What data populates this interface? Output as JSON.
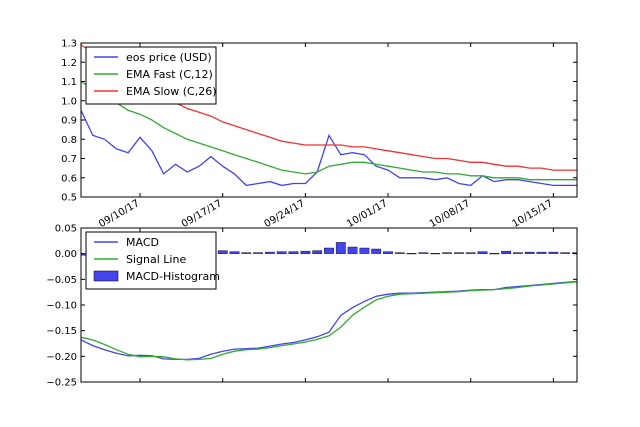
{
  "chart_data": [
    {
      "type": "line",
      "x": [
        "2017-09-05",
        "2017-09-06",
        "2017-09-07",
        "2017-09-08",
        "2017-09-09",
        "2017-09-10",
        "2017-09-11",
        "2017-09-12",
        "2017-09-13",
        "2017-09-14",
        "2017-09-15",
        "2017-09-16",
        "2017-09-17",
        "2017-09-18",
        "2017-09-19",
        "2017-09-20",
        "2017-09-21",
        "2017-09-22",
        "2017-09-23",
        "2017-09-24",
        "2017-09-25",
        "2017-09-26",
        "2017-09-27",
        "2017-09-28",
        "2017-09-29",
        "2017-09-30",
        "2017-10-01",
        "2017-10-02",
        "2017-10-03",
        "2017-10-04",
        "2017-10-05",
        "2017-10-06",
        "2017-10-07",
        "2017-10-08",
        "2017-10-09",
        "2017-10-10",
        "2017-10-11",
        "2017-10-12",
        "2017-10-13",
        "2017-10-14",
        "2017-10-15",
        "2017-10-16",
        "2017-10-17"
      ],
      "x_ticks": [
        "09/10/17",
        "09/17/17",
        "09/24/17",
        "10/01/17",
        "10/08/17",
        "10/15/17"
      ],
      "x_tick_dates": [
        "2017-09-10",
        "2017-09-17",
        "2017-09-24",
        "2017-10-01",
        "2017-10-08",
        "2017-10-15"
      ],
      "ylim": [
        0.5,
        1.3
      ],
      "y_ticks": [
        0.5,
        0.6,
        0.7,
        0.8,
        0.9,
        1.0,
        1.1,
        1.2,
        1.3
      ],
      "y_tick_labels": [
        "0.5",
        "0.6",
        "0.7",
        "0.8",
        "0.9",
        "1.0",
        "1.1",
        "1.2",
        "1.3"
      ],
      "legend_position": "top-left",
      "series": [
        {
          "name": "eos price (USD)",
          "color": "#4444ee",
          "values": [
            0.95,
            0.82,
            0.8,
            0.75,
            0.73,
            0.81,
            0.74,
            0.62,
            0.67,
            0.63,
            0.66,
            0.71,
            0.66,
            0.62,
            0.56,
            0.57,
            0.58,
            0.56,
            0.57,
            0.57,
            0.63,
            0.82,
            0.72,
            0.73,
            0.72,
            0.66,
            0.64,
            0.6,
            0.6,
            0.6,
            0.59,
            0.6,
            0.57,
            0.56,
            0.61,
            0.58,
            0.59,
            0.59,
            0.58,
            0.57,
            0.56,
            0.56,
            0.56
          ]
        },
        {
          "name": "EMA Fast (C,12)",
          "color": "#33aa33",
          "values": [
            1.1,
            1.06,
            1.03,
            0.99,
            0.95,
            0.93,
            0.9,
            0.86,
            0.83,
            0.8,
            0.78,
            0.76,
            0.74,
            0.72,
            0.7,
            0.68,
            0.66,
            0.64,
            0.63,
            0.62,
            0.63,
            0.66,
            0.67,
            0.68,
            0.68,
            0.67,
            0.66,
            0.65,
            0.64,
            0.63,
            0.63,
            0.62,
            0.62,
            0.61,
            0.61,
            0.6,
            0.6,
            0.6,
            0.59,
            0.59,
            0.59,
            0.59,
            0.59
          ]
        },
        {
          "name": "EMA Slow (C,26)",
          "color": "#ee3333",
          "values": [
            1.29,
            1.25,
            1.21,
            1.17,
            1.13,
            1.1,
            1.06,
            1.02,
            0.99,
            0.96,
            0.94,
            0.92,
            0.89,
            0.87,
            0.85,
            0.83,
            0.81,
            0.79,
            0.78,
            0.77,
            0.77,
            0.77,
            0.77,
            0.76,
            0.76,
            0.75,
            0.74,
            0.73,
            0.72,
            0.71,
            0.7,
            0.7,
            0.69,
            0.68,
            0.68,
            0.67,
            0.66,
            0.66,
            0.65,
            0.65,
            0.64,
            0.64,
            0.64
          ]
        }
      ]
    },
    {
      "type": "line",
      "x": [
        "2017-09-05",
        "2017-09-06",
        "2017-09-07",
        "2017-09-08",
        "2017-09-09",
        "2017-09-10",
        "2017-09-11",
        "2017-09-12",
        "2017-09-13",
        "2017-09-14",
        "2017-09-15",
        "2017-09-16",
        "2017-09-17",
        "2017-09-18",
        "2017-09-19",
        "2017-09-20",
        "2017-09-21",
        "2017-09-22",
        "2017-09-23",
        "2017-09-24",
        "2017-09-25",
        "2017-09-26",
        "2017-09-27",
        "2017-09-28",
        "2017-09-29",
        "2017-09-30",
        "2017-10-01",
        "2017-10-02",
        "2017-10-03",
        "2017-10-04",
        "2017-10-05",
        "2017-10-06",
        "2017-10-07",
        "2017-10-08",
        "2017-10-09",
        "2017-10-10",
        "2017-10-11",
        "2017-10-12",
        "2017-10-13",
        "2017-10-14",
        "2017-10-15",
        "2017-10-16",
        "2017-10-17"
      ],
      "ylim": [
        -0.25,
        0.05
      ],
      "y_ticks": [
        -0.25,
        -0.2,
        -0.15,
        -0.1,
        -0.05,
        0.0,
        0.05
      ],
      "y_tick_labels": [
        "−0.25",
        "−0.20",
        "−0.15",
        "−0.10",
        "−0.05",
        "0.00",
        "0.05"
      ],
      "legend_position": "top-left",
      "series": [
        {
          "name": "MACD",
          "color": "#4444ee",
          "values": [
            -0.168,
            -0.179,
            -0.187,
            -0.194,
            -0.199,
            -0.198,
            -0.199,
            -0.205,
            -0.206,
            -0.206,
            -0.204,
            -0.196,
            -0.19,
            -0.186,
            -0.185,
            -0.184,
            -0.18,
            -0.176,
            -0.173,
            -0.168,
            -0.162,
            -0.153,
            -0.12,
            -0.105,
            -0.093,
            -0.083,
            -0.079,
            -0.077,
            -0.077,
            -0.076,
            -0.075,
            -0.074,
            -0.073,
            -0.071,
            -0.07,
            -0.07,
            -0.066,
            -0.064,
            -0.062,
            -0.06,
            -0.058,
            -0.056,
            -0.054
          ]
        },
        {
          "name": "Signal Line",
          "color": "#33aa33",
          "values": [
            -0.163,
            -0.168,
            -0.177,
            -0.187,
            -0.196,
            -0.201,
            -0.2,
            -0.201,
            -0.205,
            -0.207,
            -0.206,
            -0.204,
            -0.196,
            -0.19,
            -0.187,
            -0.186,
            -0.183,
            -0.179,
            -0.176,
            -0.172,
            -0.167,
            -0.16,
            -0.143,
            -0.12,
            -0.104,
            -0.09,
            -0.083,
            -0.079,
            -0.078,
            -0.077,
            -0.076,
            -0.075,
            -0.074,
            -0.072,
            -0.071,
            -0.07,
            -0.068,
            -0.066,
            -0.063,
            -0.061,
            -0.059,
            -0.057,
            -0.055
          ]
        },
        {
          "name": "MACD-Histogram",
          "type": "bar",
          "color": "#4444ee",
          "values": [
            -0.003,
            -0.006,
            -0.006,
            -0.004,
            -0.003,
            -0.001,
            -0.001,
            -0.002,
            -0.002,
            -0.001,
            0.002,
            0.008,
            0.006,
            0.004,
            0.002,
            0.002,
            0.003,
            0.004,
            0.004,
            0.005,
            0.006,
            0.011,
            0.022,
            0.013,
            0.011,
            0.009,
            0.004,
            0.002,
            0.001,
            0.002,
            0.001,
            0.002,
            0.002,
            0.002,
            0.004,
            0.001,
            0.005,
            0.002,
            0.003,
            0.003,
            0.003,
            0.002,
            0.002
          ]
        }
      ]
    }
  ]
}
